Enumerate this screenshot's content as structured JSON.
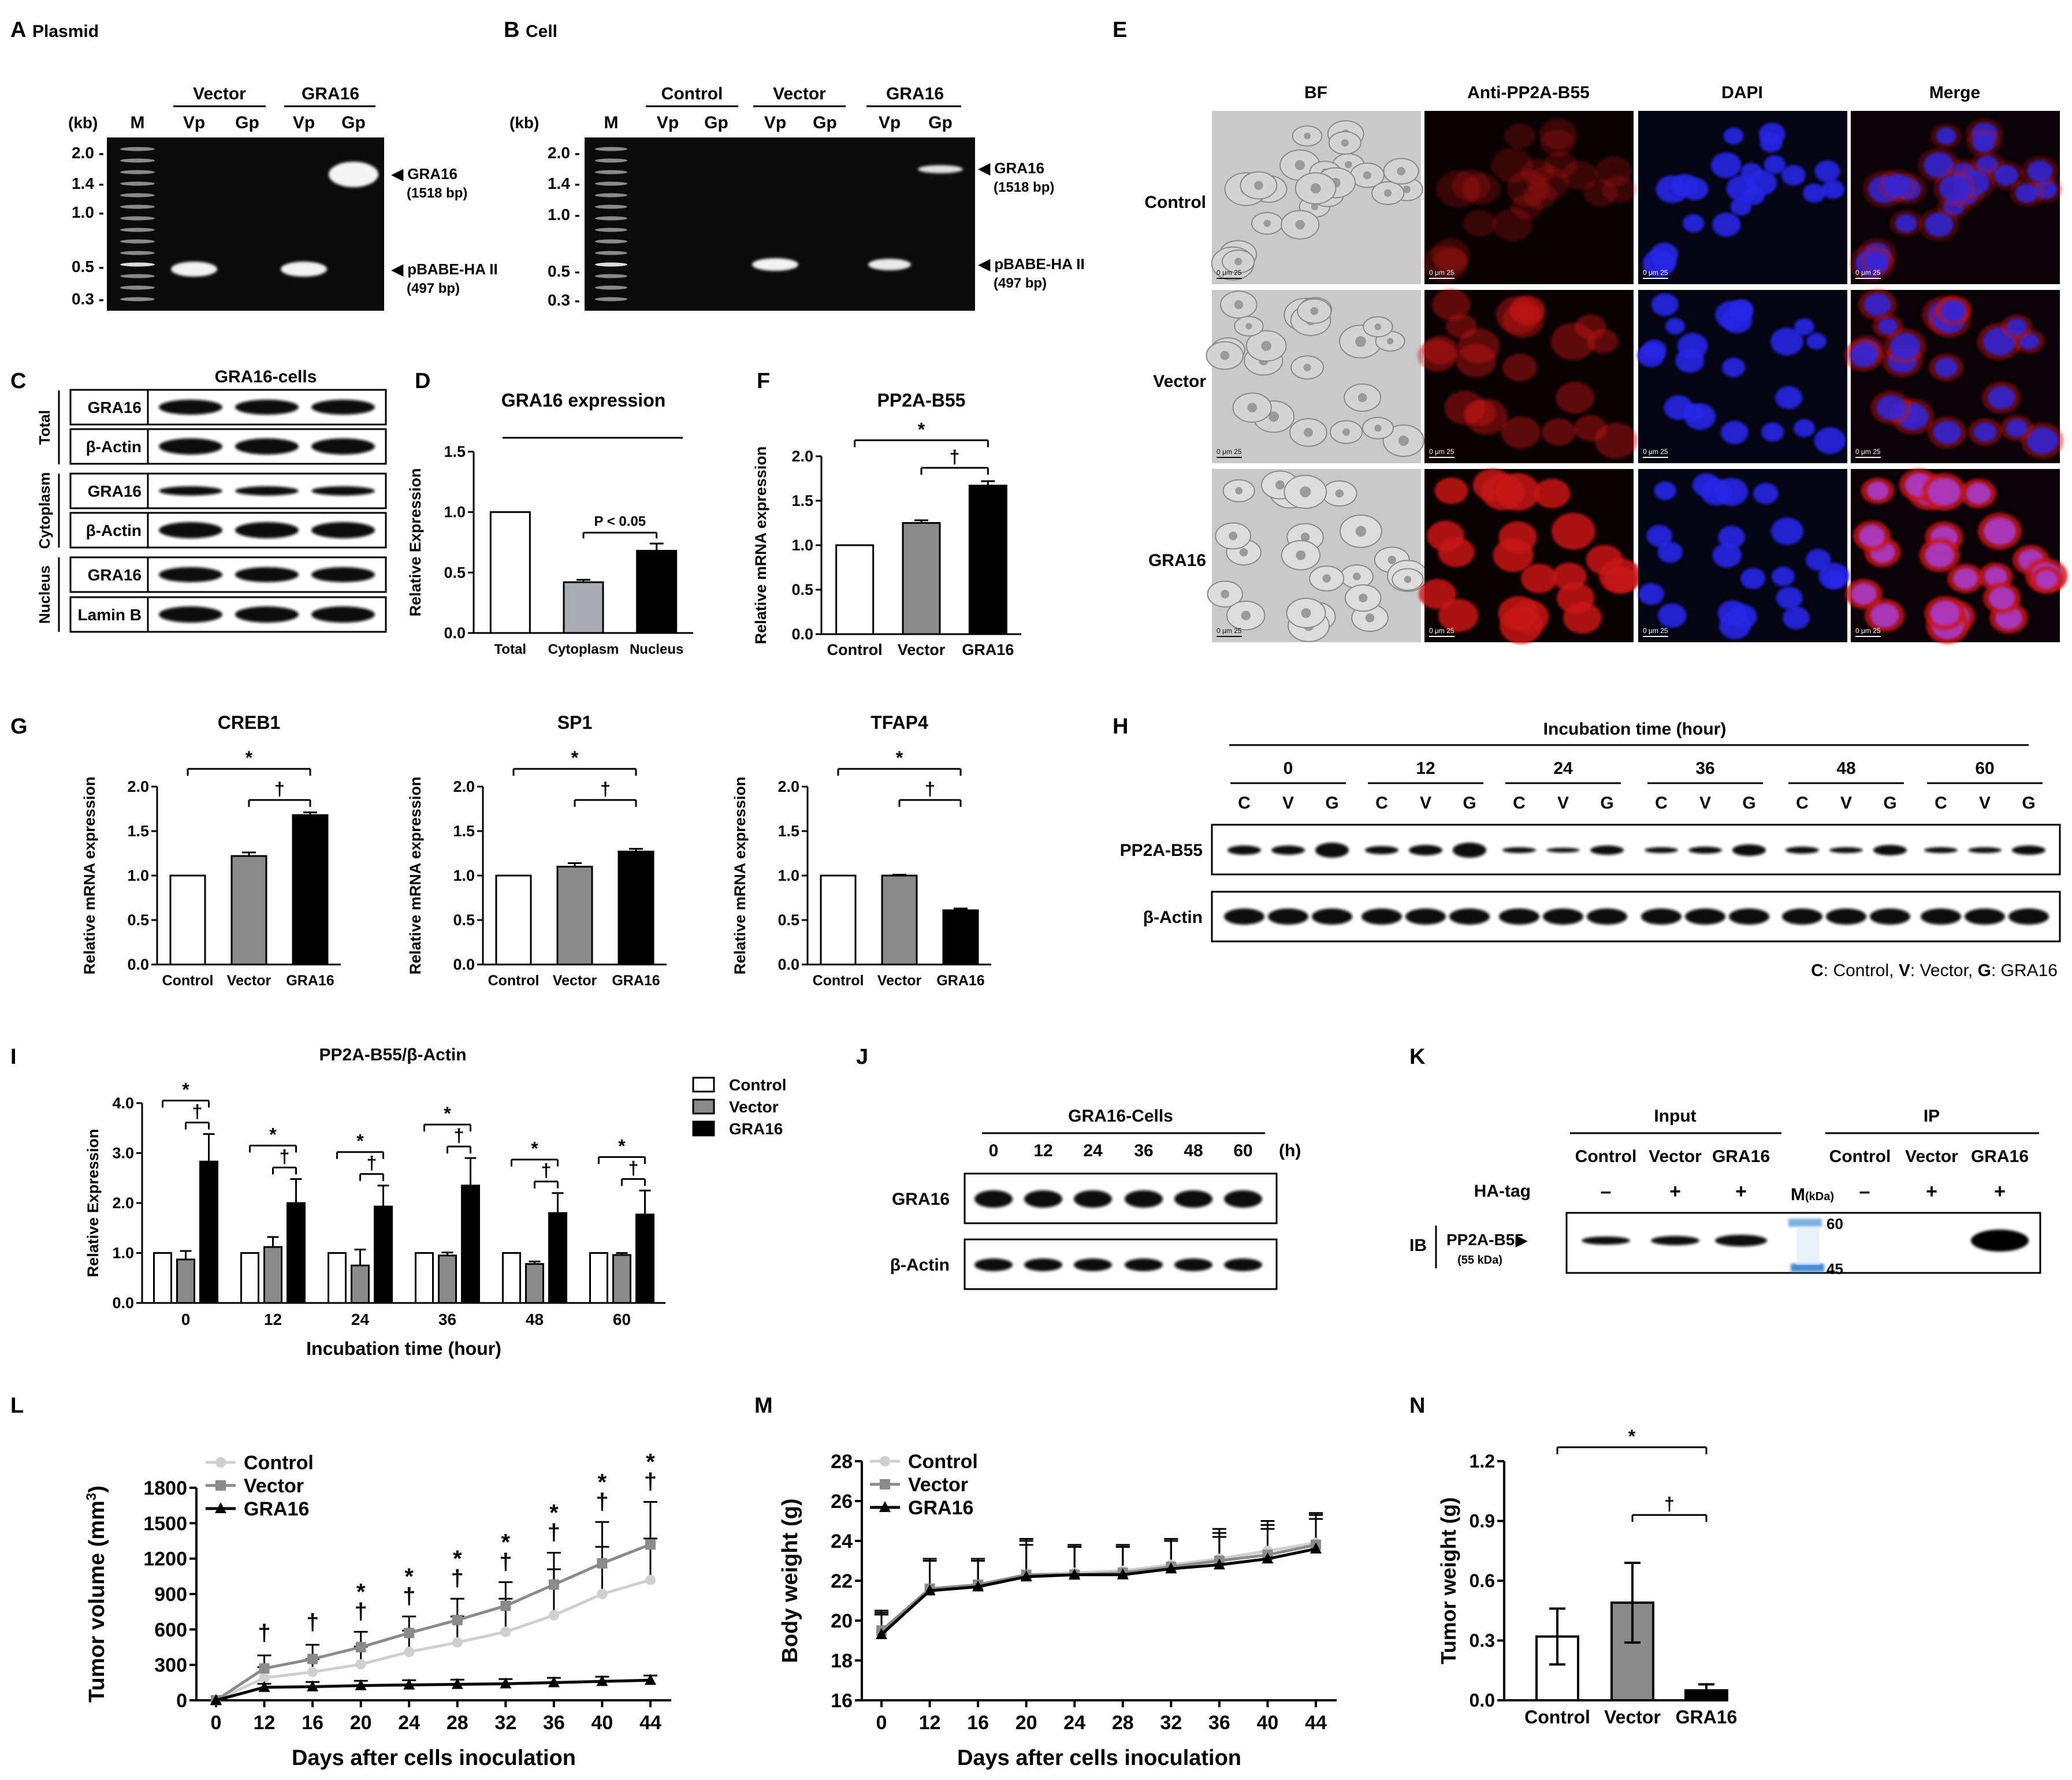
{
  "panels": {
    "A": {
      "letter": "A",
      "title": "Plasmid",
      "groups": [
        "Vector",
        "GRA16"
      ],
      "lanes": [
        "M",
        "Vp",
        "Gp",
        "Vp",
        "Gp"
      ],
      "unit": "(kb)",
      "ladder": [
        "2.0 -",
        "1.4 -",
        "1.0 -",
        "0.5 -",
        "0.3 -"
      ],
      "bands": [
        {
          "label": "GRA16",
          "sub": "(1518 bp)"
        },
        {
          "label": "pBABE-HA II",
          "sub": "(497 bp)"
        }
      ]
    },
    "B": {
      "letter": "B",
      "title": "Cell",
      "groups": [
        "Control",
        "Vector",
        "GRA16"
      ],
      "lanes": [
        "M",
        "Vp",
        "Gp",
        "Vp",
        "Gp",
        "Vp",
        "Gp"
      ],
      "unit": "(kb)",
      "ladder": [
        "2.0 -",
        "1.4 -",
        "1.0 -",
        "0.5 -",
        "0.3 -"
      ],
      "bands": [
        {
          "label": "GRA16",
          "sub": "(1518 bp)"
        },
        {
          "label": "pBABE-HA II",
          "sub": "(497 bp)"
        }
      ]
    },
    "C": {
      "letter": "C",
      "header": "GRA16-cells",
      "sections": [
        "Total",
        "Cytoplasm",
        "Nucleus"
      ],
      "rows": [
        "GRA16",
        "β-Actin",
        "GRA16",
        "β-Actin",
        "GRA16",
        "Lamin B"
      ]
    },
    "E": {
      "letter": "E",
      "columns": [
        "BF",
        "Anti-PP2A-B55",
        "DAPI",
        "Merge"
      ],
      "rows": [
        "Control",
        "Vector",
        "GRA16"
      ],
      "scale": "0   μm 25"
    },
    "H": {
      "letter": "H",
      "title": "Incubation time (hour)",
      "times": [
        "0",
        "12",
        "24",
        "36",
        "48",
        "60"
      ],
      "lanes": [
        "C",
        "V",
        "G"
      ],
      "rows": [
        "PP2A-B55",
        "β-Actin"
      ],
      "legend": {
        "c": "C",
        "c_txt": ": Control, ",
        "v": "V",
        "v_txt": ": Vector, ",
        "g": "G",
        "g_txt": ": GRA16"
      }
    },
    "J": {
      "letter": "J",
      "title": "GRA16-Cells",
      "times": [
        "0",
        "12",
        "24",
        "36",
        "48",
        "60"
      ],
      "unit": "(h)",
      "rows": [
        "GRA16",
        "β-Actin"
      ]
    },
    "K": {
      "letter": "K",
      "groups": [
        "Input",
        "IP"
      ],
      "lanes": [
        "Control",
        "Vector",
        "GRA16",
        "Control",
        "Vector",
        "GRA16"
      ],
      "tag": "HA-tag",
      "signs": [
        "–",
        "+",
        "+",
        "–",
        "+",
        "+"
      ],
      "marker": "M",
      "marker_unit": "(kDa)",
      "marker_kda": [
        "60",
        "45"
      ],
      "ib": "IB",
      "target": "PP2A-B55",
      "target_kda": "(55 kDa)"
    }
  },
  "chart_data": [
    {
      "id": "D",
      "letter": "D",
      "type": "bar",
      "title": "GRA16 expression",
      "categories": [
        "Total",
        "Cytoplasm",
        "Nucleus"
      ],
      "values": [
        1.0,
        0.42,
        0.68
      ],
      "errors": [
        0,
        0.02,
        0.06
      ],
      "fills": [
        "#ffffff",
        "#aaaab2",
        "#000000"
      ],
      "xlabel": "",
      "ylabel": "Relative Expression",
      "ylim": [
        0,
        1.5
      ],
      "yticks": [
        "0.0",
        "0.5",
        "1.0",
        "1.5"
      ],
      "annotation": "P  < 0.05"
    },
    {
      "id": "F",
      "letter": "F",
      "type": "bar",
      "title": "PP2A-B55",
      "categories": [
        "Control",
        "Vector",
        "GRA16"
      ],
      "values": [
        1.0,
        1.25,
        1.67
      ],
      "errors": [
        0,
        0.03,
        0.05
      ],
      "fills": [
        "#ffffff",
        "#8a8a8a",
        "#000000"
      ],
      "xlabel": "",
      "ylabel": "Relative mRNA expression",
      "ylim": [
        0,
        2.0
      ],
      "yticks": [
        "0.0",
        "0.5",
        "1.0",
        "1.5",
        "2.0"
      ],
      "sig": [
        "*",
        "†"
      ]
    },
    {
      "id": "G1",
      "letter": "G",
      "type": "bar",
      "title": "CREB1",
      "categories": [
        "Control",
        "Vector",
        "GRA16"
      ],
      "values": [
        1.0,
        1.22,
        1.68
      ],
      "errors": [
        0,
        0.04,
        0.03
      ],
      "fills": [
        "#ffffff",
        "#8a8a8a",
        "#000000"
      ],
      "xlabel": "",
      "ylabel": "Relative mRNA expression",
      "ylim": [
        0,
        2.0
      ],
      "yticks": [
        "0.0",
        "0.5",
        "1.0",
        "1.5",
        "2.0"
      ],
      "sig": [
        "*",
        "†"
      ]
    },
    {
      "id": "G2",
      "letter": "",
      "type": "bar",
      "title": "SP1",
      "categories": [
        "Control",
        "Vector",
        "GRA16"
      ],
      "values": [
        1.0,
        1.1,
        1.27
      ],
      "errors": [
        0,
        0.04,
        0.03
      ],
      "fills": [
        "#ffffff",
        "#8a8a8a",
        "#000000"
      ],
      "xlabel": "",
      "ylabel": "Relative mRNA expression",
      "ylim": [
        0,
        2.0
      ],
      "yticks": [
        "0.0",
        "0.5",
        "1.0",
        "1.5",
        "2.0"
      ],
      "sig": [
        "*",
        "†"
      ]
    },
    {
      "id": "G3",
      "letter": "",
      "type": "bar",
      "title": "TFAP4",
      "categories": [
        "Control",
        "Vector",
        "GRA16"
      ],
      "values": [
        1.0,
        1.0,
        0.61
      ],
      "errors": [
        0,
        0.01,
        0.02
      ],
      "fills": [
        "#ffffff",
        "#8a8a8a",
        "#000000"
      ],
      "xlabel": "",
      "ylabel": "Relative mRNA expression",
      "ylim": [
        0,
        2.0
      ],
      "yticks": [
        "0.0",
        "0.5",
        "1.0",
        "1.5",
        "2.0"
      ],
      "sig": [
        "*",
        "†"
      ]
    },
    {
      "id": "I",
      "letter": "I",
      "type": "bar",
      "title": "PP2A-B55/β-Actin",
      "categories": [
        "0",
        "12",
        "24",
        "36",
        "48",
        "60"
      ],
      "series": [
        {
          "name": "Control",
          "fill": "#ffffff",
          "values": [
            1.0,
            1.0,
            1.0,
            1.0,
            1.0,
            1.0
          ],
          "errors": [
            0,
            0,
            0,
            0,
            0,
            0
          ]
        },
        {
          "name": "Vector",
          "fill": "#8a8a8a",
          "values": [
            0.87,
            1.12,
            0.75,
            0.95,
            0.78,
            0.96
          ],
          "errors": [
            0.17,
            0.2,
            0.32,
            0.06,
            0.05,
            0.04
          ]
        },
        {
          "name": "GRA16",
          "fill": "#000000",
          "values": [
            2.83,
            2.0,
            1.93,
            2.35,
            1.8,
            1.77
          ],
          "errors": [
            0.55,
            0.48,
            0.42,
            0.55,
            0.4,
            0.48
          ]
        }
      ],
      "xlabel": "Incubation time (hour)",
      "ylabel": "Relative Expression",
      "ylim": [
        0,
        4.0
      ],
      "yticks": [
        "0.0",
        "1.0",
        "2.0",
        "3.0",
        "4.0"
      ],
      "sig": [
        "*",
        "†"
      ]
    },
    {
      "id": "L",
      "letter": "L",
      "type": "line",
      "x": [
        0,
        12,
        16,
        20,
        24,
        28,
        32,
        36,
        40,
        44
      ],
      "series": [
        {
          "name": "Control",
          "color": "#cfcfcf",
          "marker": "circle",
          "values": [
            0,
            190,
            240,
            305,
            410,
            490,
            580,
            720,
            900,
            1020
          ],
          "errors": [
            0,
            90,
            110,
            150,
            180,
            220,
            280,
            390,
            400,
            350
          ]
        },
        {
          "name": "Vector",
          "color": "#8a8a8a",
          "marker": "square",
          "values": [
            0,
            270,
            350,
            450,
            570,
            680,
            800,
            980,
            1160,
            1320
          ],
          "errors": [
            0,
            110,
            120,
            130,
            140,
            180,
            200,
            270,
            350,
            360
          ]
        },
        {
          "name": "GRA16",
          "color": "#000000",
          "marker": "triangle",
          "values": [
            0,
            110,
            115,
            125,
            130,
            135,
            140,
            150,
            160,
            170
          ],
          "errors": [
            0,
            30,
            40,
            40,
            40,
            40,
            40,
            40,
            40,
            40
          ]
        }
      ],
      "xlabel": "Days after cells inoculation",
      "ylabel": "Tumor volume (mm",
      "ylabel_sup": "3",
      "ylabel_end": ")",
      "ylim": [
        0,
        1800
      ],
      "yticks": [
        "0",
        "300",
        "600",
        "900",
        "1200",
        "1500",
        "1800"
      ],
      "xticks": [
        "0",
        "12",
        "16",
        "20",
        "24",
        "28",
        "32",
        "36",
        "40",
        "44"
      ],
      "marks": [
        "†",
        "†",
        "*\n†",
        "*\n†",
        "*\n†",
        "*\n†",
        "*\n†",
        "*\n†",
        "*\n†"
      ]
    },
    {
      "id": "M",
      "letter": "M",
      "type": "line",
      "x": [
        0,
        12,
        16,
        20,
        24,
        28,
        32,
        36,
        40,
        44
      ],
      "series": [
        {
          "name": "Control",
          "color": "#cfcfcf",
          "marker": "circle",
          "values": [
            19.4,
            21.5,
            21.7,
            22.3,
            22.4,
            22.5,
            22.8,
            23.1,
            23.5,
            23.9
          ],
          "errors": [
            1.0,
            1.5,
            1.3,
            1.8,
            1.4,
            1.3,
            1.3,
            1.5,
            1.5,
            1.5
          ]
        },
        {
          "name": "Vector",
          "color": "#8a8a8a",
          "marker": "square",
          "values": [
            19.5,
            21.6,
            21.8,
            22.3,
            22.3,
            22.4,
            22.7,
            23.0,
            23.3,
            23.8
          ],
          "errors": [
            1.0,
            1.5,
            1.3,
            1.7,
            1.4,
            1.3,
            1.3,
            1.4,
            1.5,
            1.5
          ]
        },
        {
          "name": "GRA16",
          "color": "#000000",
          "marker": "triangle",
          "values": [
            19.3,
            21.5,
            21.7,
            22.2,
            22.3,
            22.3,
            22.6,
            22.8,
            23.1,
            23.6
          ],
          "errors": [
            1.0,
            1.6,
            1.4,
            1.6,
            1.4,
            1.4,
            1.4,
            1.4,
            1.5,
            1.5
          ]
        }
      ],
      "xlabel": "Days after cells inoculation",
      "ylabel": "Body weight (g)",
      "ylim": [
        16,
        28
      ],
      "yticks": [
        "16",
        "18",
        "20",
        "22",
        "24",
        "26",
        "28"
      ],
      "xticks": [
        "0",
        "12",
        "16",
        "20",
        "24",
        "28",
        "32",
        "36",
        "40",
        "44"
      ]
    },
    {
      "id": "N",
      "letter": "N",
      "type": "bar",
      "categories": [
        "Control",
        "Vector",
        "GRA16"
      ],
      "values": [
        0.32,
        0.49,
        0.05
      ],
      "errors": [
        0.14,
        0.2,
        0.03
      ],
      "fills": [
        "#ffffff",
        "#8a8a8a",
        "#000000"
      ],
      "xlabel": "",
      "ylabel": "Tumor weight (g)",
      "ylim": [
        0,
        1.2
      ],
      "yticks": [
        "0.0",
        "0.3",
        "0.6",
        "0.9",
        "1.2"
      ],
      "sig": [
        "*",
        "†"
      ]
    }
  ]
}
